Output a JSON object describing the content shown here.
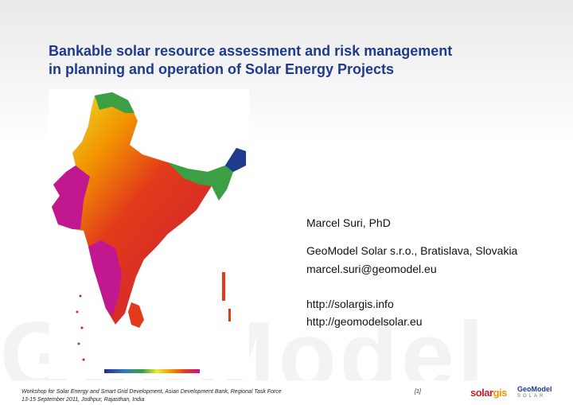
{
  "slide": {
    "title_line1": "Bankable solar resource assessment and risk management",
    "title_line2": "in planning and operation of Solar Energy Projects",
    "watermark": "GeoModel"
  },
  "author": {
    "name": "Marcel Suri, PhD",
    "affiliation": "GeoModel Solar s.r.o., Bratislava, Slovakia",
    "email": "marcel.suri@geomodel.eu",
    "links": [
      "http://solargis.info",
      "http://geomodelsolar.eu"
    ]
  },
  "footer": {
    "line1": "Workshop for Solar Energy and Smart Grid Development, Asian Development Bank, Regional Task Force",
    "line2": "13-15 September 2011, Jodhpur, Rajasthan, India",
    "page": "[1]"
  },
  "logos": {
    "solargis_a": "solar",
    "solargis_b": "gis",
    "geomodel_top": "GeoModel",
    "geomodel_bottom": "SOLAR"
  },
  "colors": {
    "title": "#1f3a8f",
    "map_high": "#c2188f",
    "map_mid": "#e23a1a",
    "map_orange": "#f29400",
    "map_green": "#3aa043",
    "map_blue": "#1f3a8f"
  }
}
